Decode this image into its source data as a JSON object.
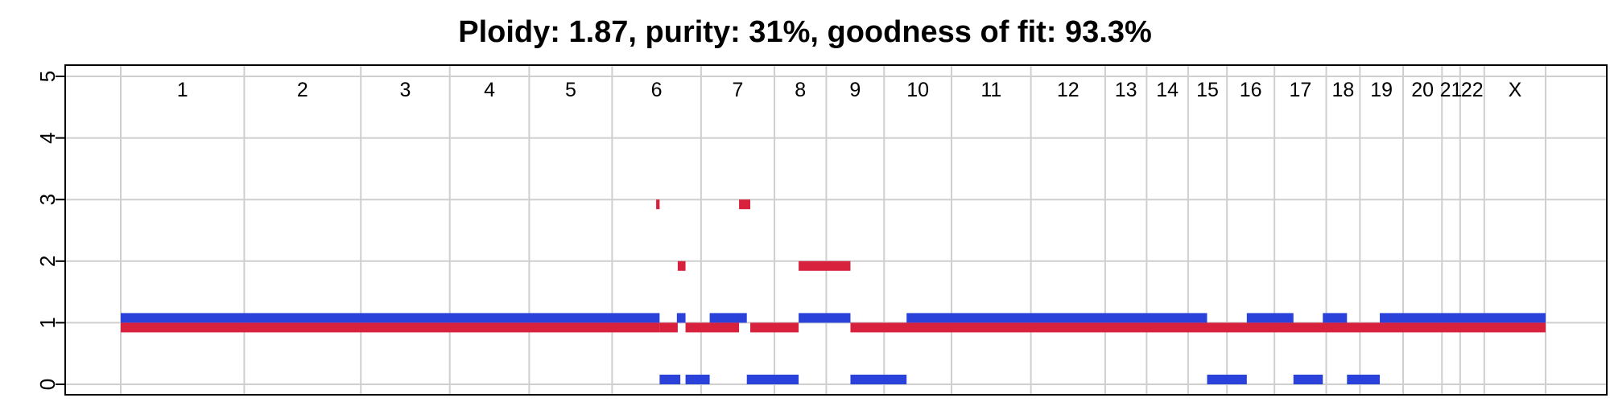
{
  "chart_data": {
    "type": "segment",
    "title": "Ploidy: 1.87, purity: 31%, goodness of fit: 93.3%",
    "ylim": [
      0,
      5
    ],
    "yticks": [
      "0",
      "1",
      "2",
      "3",
      "4",
      "5"
    ],
    "colors": {
      "major": "#2a42d9",
      "minor": "#d7213d",
      "grid": "#cfcfcf"
    },
    "chromosomes": [
      {
        "label": "1",
        "start": 0,
        "end": 1430
      },
      {
        "label": "2",
        "start": 1430,
        "end": 2780
      },
      {
        "label": "3",
        "start": 2780,
        "end": 3810
      },
      {
        "label": "4",
        "start": 3810,
        "end": 4730
      },
      {
        "label": "5",
        "start": 4730,
        "end": 5690
      },
      {
        "label": "6",
        "start": 5690,
        "end": 6720
      },
      {
        "label": "7",
        "start": 6720,
        "end": 7570
      },
      {
        "label": "8",
        "start": 7570,
        "end": 8170
      },
      {
        "label": "9",
        "start": 8170,
        "end": 8840
      },
      {
        "label": "10",
        "start": 8840,
        "end": 9620
      },
      {
        "label": "11",
        "start": 9620,
        "end": 10540
      },
      {
        "label": "12",
        "start": 10540,
        "end": 11400
      },
      {
        "label": "13",
        "start": 11400,
        "end": 11880
      },
      {
        "label": "14",
        "start": 11880,
        "end": 12360
      },
      {
        "label": "15",
        "start": 12360,
        "end": 12810
      },
      {
        "label": "16",
        "start": 12810,
        "end": 13360
      },
      {
        "label": "17",
        "start": 13360,
        "end": 13960
      },
      {
        "label": "18",
        "start": 13960,
        "end": 14350
      },
      {
        "label": "19",
        "start": 14350,
        "end": 14850
      },
      {
        "label": "20",
        "start": 14850,
        "end": 15300
      },
      {
        "label": "21",
        "start": 15300,
        "end": 15510
      },
      {
        "label": "22",
        "start": 15510,
        "end": 15790
      },
      {
        "label": "X",
        "start": 15790,
        "end": 16500
      }
    ],
    "major_segments": [
      {
        "start": 0,
        "end": 6240,
        "value": 1
      },
      {
        "start": 6240,
        "end": 6480,
        "value": 0
      },
      {
        "start": 6440,
        "end": 6540,
        "value": 1
      },
      {
        "start": 6540,
        "end": 6820,
        "value": 0
      },
      {
        "start": 6820,
        "end": 7250,
        "value": 1
      },
      {
        "start": 7250,
        "end": 7850,
        "value": 0
      },
      {
        "start": 7850,
        "end": 8450,
        "value": 1
      },
      {
        "start": 8450,
        "end": 9100,
        "value": 0
      },
      {
        "start": 9100,
        "end": 12580,
        "value": 1
      },
      {
        "start": 12580,
        "end": 13040,
        "value": 0
      },
      {
        "start": 13040,
        "end": 13580,
        "value": 1
      },
      {
        "start": 13580,
        "end": 13920,
        "value": 0
      },
      {
        "start": 13920,
        "end": 14200,
        "value": 1
      },
      {
        "start": 14200,
        "end": 14580,
        "value": 0
      },
      {
        "start": 14580,
        "end": 16500,
        "value": 1
      }
    ],
    "minor_segments": [
      {
        "start": 0,
        "end": 6240,
        "value": 1
      },
      {
        "start": 6200,
        "end": 6240,
        "value": 3
      },
      {
        "start": 6240,
        "end": 6450,
        "value": 1
      },
      {
        "start": 6450,
        "end": 6540,
        "value": 2
      },
      {
        "start": 6540,
        "end": 7160,
        "value": 1
      },
      {
        "start": 7160,
        "end": 7290,
        "value": 3
      },
      {
        "start": 7290,
        "end": 7850,
        "value": 1
      },
      {
        "start": 7850,
        "end": 8450,
        "value": 2
      },
      {
        "start": 8450,
        "end": 16500,
        "value": 1
      }
    ]
  }
}
